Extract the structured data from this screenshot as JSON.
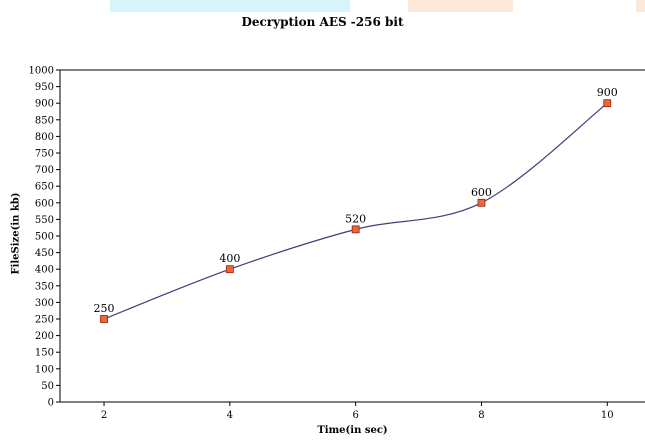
{
  "colors": {
    "line": "#3b3f7a",
    "marker_fill": "#f0643a",
    "marker_stroke": "#8a2a10",
    "axis": "#000000"
  },
  "chart_data": {
    "type": "line",
    "title": "Decryption AES -256 bit",
    "xlabel": "Time(in sec)",
    "ylabel": "FileSize(in kb)",
    "x": [
      2,
      4,
      6,
      8,
      10
    ],
    "xticks": [
      2,
      4,
      6,
      8,
      10
    ],
    "xlim": [
      1.3,
      10.6
    ],
    "ylim": [
      0,
      1000
    ],
    "ytick_step": 50,
    "grid": false,
    "smooth": true,
    "series": [
      {
        "values": [
          250,
          400,
          520,
          600,
          900
        ],
        "data_labels": [
          "250",
          "400",
          "520",
          "600",
          "900"
        ],
        "marker": "square"
      }
    ]
  }
}
